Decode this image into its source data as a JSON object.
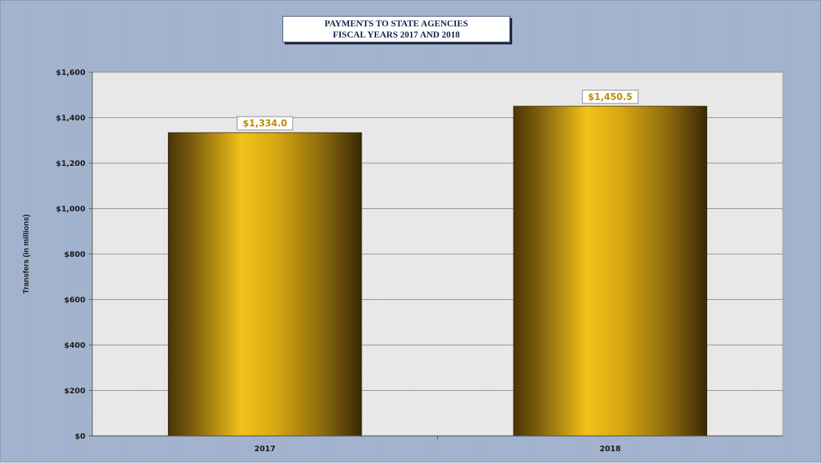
{
  "chart_data": {
    "type": "bar",
    "title_lines": [
      "PAYMENTS  TO STATE  AGENCIES",
      "FISCAL YEARS  2017 AND 2018"
    ],
    "categories": [
      "2017",
      "2018"
    ],
    "values": [
      1334.0,
      1450.5
    ],
    "data_labels": [
      "$1,334.0",
      "$1,450.5"
    ],
    "ylabel": "Transfers (in millions)",
    "xlabel": "",
    "ylim": [
      0,
      1600
    ],
    "yticks": [
      0,
      200,
      400,
      600,
      800,
      1000,
      1200,
      1400,
      1600
    ],
    "ytick_labels": [
      "$0",
      "$200",
      "$400",
      "$600",
      "$800",
      "$1,000",
      "$1,200",
      "$1,400",
      "$1,600"
    ],
    "grid": true,
    "legend": "none",
    "colors": {
      "bar_dark": "#4a3508",
      "bar_mid": "#c89a10",
      "bar_light": "#f2c21a",
      "plot_bg": "#e9e9e9",
      "frame_bg": "#9fb0cc",
      "label_text": "#c08a00"
    }
  }
}
